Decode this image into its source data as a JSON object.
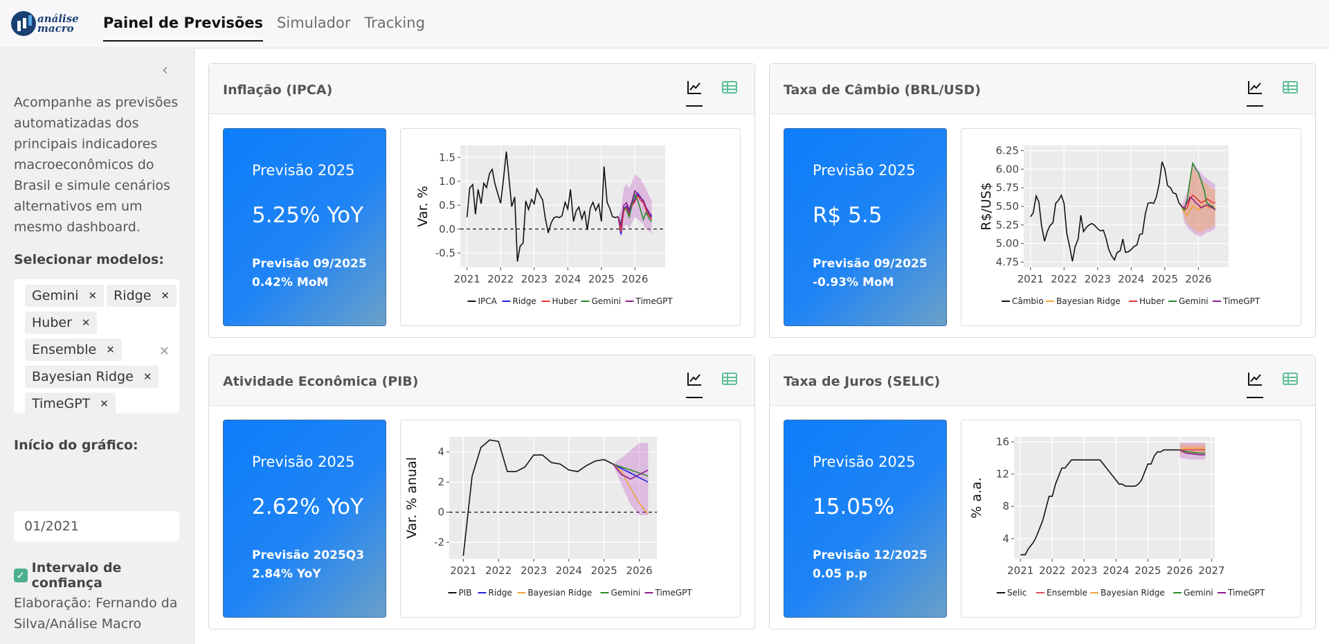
{
  "nav": {
    "items": [
      "Painel de Previsões",
      "Simulador",
      "Tracking"
    ]
  },
  "sidebar": {
    "description": "Acompanhe as previsões automatizadas dos principais indicadores macroeconômicos do Brasil e simule cenários alternativos em um mesmo dashboard.",
    "models_label": "Selecionar modelos:",
    "selected_models": [
      "Gemini",
      "Ridge",
      "Huber",
      "Ensemble",
      "Bayesian Ridge",
      "TimeGPT"
    ],
    "start_label": "Início do gráfico:",
    "start_value": "01/2021",
    "confidence_label": "Intervalo de confiança",
    "confidence_checked": true,
    "credit": "Elaboração: Fernando da Silva/Análise Macro"
  },
  "cards": [
    {
      "title": "Inflação (IPCA)",
      "box_title": "Previsão 2025",
      "box_value": "5.25% YoY",
      "box_sub1": "Previsão 09/2025",
      "box_sub2": "0.42% MoM"
    },
    {
      "title": "Taxa de Câmbio (BRL/USD)",
      "box_title": "Previsão 2025",
      "box_value": "R$ 5.5",
      "box_sub1": "Previsão 09/2025",
      "box_sub2": "-0.93% MoM"
    },
    {
      "title": "Atividade Econômica (PIB)",
      "box_title": "Previsão 2025",
      "box_value": "2.62% YoY",
      "box_sub1": "Previsão 2025Q3",
      "box_sub2": "2.84% YoY"
    },
    {
      "title": "Taxa de Juros (SELIC)",
      "box_title": "Previsão 2025",
      "box_value": "15.05%",
      "box_sub1": "Previsão 12/2025",
      "box_sub2": "0.05 p.p"
    }
  ],
  "colors": {
    "Ridge": "#1f1fe0",
    "Huber": "#e8322e",
    "Gemini": "#2a8a2a",
    "TimeGPT": "#8a1c8a",
    "Bayesian Ridge": "#f2a33a",
    "Ensemble": "#d94a5a",
    "history": "#111111",
    "band": "#c060c8"
  },
  "chart_data": [
    {
      "type": "line",
      "ylabel": "Var. %",
      "ylim": [
        -0.8,
        1.75
      ],
      "yticks": [
        -0.5,
        0.0,
        0.5,
        1.0,
        1.5
      ],
      "ytick_labels": [
        "-0.5",
        "0.0",
        "0.5",
        "1.0",
        "1.5"
      ],
      "xlim": [
        2020.8,
        2026.9
      ],
      "xticks": [
        2021,
        2022,
        2023,
        2024,
        2025,
        2026
      ],
      "hline": 0,
      "legend": [
        "IPCA",
        "Ridge",
        "Huber",
        "Gemini",
        "TimeGPT"
      ],
      "history": {
        "name": "IPCA",
        "x": [
          2021.0,
          2021.08,
          2021.17,
          2021.25,
          2021.33,
          2021.42,
          2021.5,
          2021.58,
          2021.67,
          2021.75,
          2021.83,
          2021.92,
          2022.0,
          2022.08,
          2022.17,
          2022.25,
          2022.33,
          2022.42,
          2022.5,
          2022.58,
          2022.67,
          2022.75,
          2022.83,
          2022.92,
          2023.0,
          2023.08,
          2023.17,
          2023.25,
          2023.33,
          2023.42,
          2023.5,
          2023.58,
          2023.67,
          2023.75,
          2023.83,
          2023.92,
          2024.0,
          2024.08,
          2024.17,
          2024.25,
          2024.33,
          2024.42,
          2024.5,
          2024.58,
          2024.67,
          2024.75,
          2024.83,
          2024.92,
          2025.0,
          2025.08,
          2025.17,
          2025.25,
          2025.33,
          2025.42,
          2025.5
        ],
        "y": [
          0.25,
          0.86,
          0.93,
          0.31,
          0.83,
          0.53,
          0.96,
          0.87,
          1.16,
          1.25,
          0.95,
          0.73,
          0.54,
          1.01,
          1.62,
          1.06,
          0.47,
          0.67,
          -0.68,
          -0.36,
          -0.29,
          0.59,
          0.41,
          0.62,
          0.53,
          0.84,
          0.71,
          0.61,
          0.23,
          -0.08,
          0.12,
          0.23,
          0.26,
          0.24,
          0.28,
          0.56,
          0.42,
          0.83,
          0.16,
          0.38,
          0.46,
          0.21,
          0.38,
          -0.02,
          0.44,
          0.56,
          0.39,
          0.52,
          0.16,
          1.31,
          0.56,
          0.43,
          0.26,
          0.24,
          0.26
        ]
      },
      "forecast_x": [
        2025.5,
        2025.58,
        2025.67,
        2025.75,
        2025.83,
        2025.92,
        2026.0,
        2026.08,
        2026.17,
        2026.25,
        2026.33,
        2026.42,
        2026.5
      ],
      "series": [
        {
          "name": "Ridge",
          "y": [
            0.26,
            -0.11,
            0.42,
            0.48,
            0.35,
            0.52,
            0.62,
            0.75,
            0.66,
            0.58,
            0.42,
            0.3,
            0.25
          ]
        },
        {
          "name": "Huber",
          "y": [
            0.26,
            -0.05,
            0.38,
            0.45,
            0.3,
            0.5,
            0.58,
            0.7,
            0.6,
            0.55,
            0.4,
            0.28,
            0.2
          ]
        },
        {
          "name": "Gemini",
          "y": [
            0.26,
            0.1,
            0.45,
            0.4,
            0.25,
            0.55,
            0.72,
            0.6,
            0.4,
            0.2,
            0.35,
            0.22,
            0.15
          ]
        },
        {
          "name": "TimeGPT",
          "y": [
            0.26,
            0.05,
            0.5,
            0.55,
            0.4,
            0.6,
            0.8,
            0.72,
            0.65,
            0.6,
            0.45,
            0.35,
            0.28
          ]
        }
      ],
      "band": {
        "lower": [
          0.26,
          -0.2,
          0.05,
          0.1,
          0.0,
          0.15,
          0.25,
          0.2,
          0.15,
          0.1,
          0.0,
          -0.05,
          -0.1
        ],
        "upper": [
          0.26,
          0.4,
          0.85,
          0.95,
          0.85,
          1.0,
          1.15,
          1.1,
          1.05,
          0.95,
          0.85,
          0.7,
          0.6
        ]
      }
    },
    {
      "type": "line",
      "ylabel": "R$/US$",
      "ylim": [
        4.68,
        6.32
      ],
      "yticks": [
        4.75,
        5.0,
        5.25,
        5.5,
        5.75,
        6.0,
        6.25
      ],
      "ytick_labels": [
        "4.75",
        "5.00",
        "5.25",
        "5.50",
        "5.75",
        "6.00",
        "6.25"
      ],
      "xlim": [
        2020.8,
        2026.9
      ],
      "xticks": [
        2021,
        2022,
        2023,
        2024,
        2025,
        2026
      ],
      "legend": [
        "Câmbio",
        "Bayesian Ridge",
        "Huber",
        "Gemini",
        "TimeGPT"
      ],
      "history": {
        "name": "Câmbio",
        "x": [
          2021.0,
          2021.08,
          2021.17,
          2021.25,
          2021.33,
          2021.42,
          2021.5,
          2021.58,
          2021.67,
          2021.75,
          2021.83,
          2021.92,
          2022.0,
          2022.08,
          2022.17,
          2022.25,
          2022.33,
          2022.42,
          2022.5,
          2022.58,
          2022.67,
          2022.75,
          2022.83,
          2022.92,
          2023.0,
          2023.08,
          2023.17,
          2023.25,
          2023.33,
          2023.42,
          2023.5,
          2023.58,
          2023.67,
          2023.75,
          2023.83,
          2023.92,
          2024.0,
          2024.08,
          2024.17,
          2024.25,
          2024.33,
          2024.42,
          2024.5,
          2024.58,
          2024.67,
          2024.75,
          2024.83,
          2024.92,
          2025.0,
          2025.08,
          2025.17,
          2025.25,
          2025.33,
          2025.42,
          2025.5
        ],
        "y": [
          5.36,
          5.41,
          5.64,
          5.56,
          5.24,
          5.03,
          5.16,
          5.24,
          5.28,
          5.54,
          5.58,
          5.65,
          5.54,
          5.14,
          4.95,
          4.76,
          4.96,
          5.06,
          5.38,
          5.16,
          5.22,
          5.25,
          5.27,
          5.24,
          5.2,
          5.17,
          5.18,
          5.07,
          4.92,
          4.83,
          4.78,
          4.88,
          4.9,
          5.06,
          4.88,
          4.89,
          4.92,
          4.96,
          4.98,
          5.12,
          5.13,
          5.4,
          5.54,
          5.55,
          5.54,
          5.63,
          5.8,
          6.1,
          6.0,
          5.78,
          5.75,
          5.68,
          5.67,
          5.55,
          5.5
        ]
      },
      "forecast_x": [
        2025.5,
        2025.58,
        2025.67,
        2025.75,
        2025.83,
        2025.92,
        2026.0,
        2026.08,
        2026.17,
        2026.25,
        2026.33,
        2026.42,
        2026.5
      ],
      "series": [
        {
          "name": "Bayesian Ridge",
          "y": [
            5.5,
            5.42,
            5.38,
            5.45,
            5.5,
            5.48,
            5.45,
            5.5,
            5.52,
            5.5,
            5.48,
            5.5,
            5.47
          ]
        },
        {
          "name": "Huber",
          "y": [
            5.5,
            5.45,
            5.48,
            5.6,
            5.65,
            5.62,
            5.58,
            5.55,
            5.57,
            5.6,
            5.58,
            5.55,
            5.55
          ]
        },
        {
          "name": "Gemini",
          "y": [
            5.5,
            5.45,
            5.6,
            5.85,
            6.08,
            6.0,
            5.95,
            5.85,
            5.72,
            5.55,
            5.52,
            5.5,
            5.45
          ]
        },
        {
          "name": "TimeGPT",
          "y": [
            5.5,
            5.48,
            5.55,
            5.62,
            5.6,
            5.55,
            5.52,
            5.48,
            5.5,
            5.52,
            5.5,
            5.48,
            5.46
          ]
        }
      ],
      "band": {
        "lower": [
          5.5,
          5.28,
          5.22,
          5.18,
          5.15,
          5.12,
          5.1,
          5.1,
          5.12,
          5.15,
          5.15,
          5.18,
          5.2
        ],
        "upper": [
          5.5,
          5.6,
          5.7,
          5.9,
          6.1,
          6.05,
          6.0,
          5.95,
          5.9,
          5.88,
          5.85,
          5.82,
          5.8
        ]
      }
    },
    {
      "type": "line",
      "ylabel": "Var. % anual",
      "ylim": [
        -3.1,
        5.0
      ],
      "yticks": [
        -2,
        0,
        2,
        4
      ],
      "ytick_labels": [
        "-2",
        "0",
        "2",
        "4"
      ],
      "xlim": [
        2020.6,
        2026.5
      ],
      "xticks": [
        2021,
        2022,
        2023,
        2024,
        2025,
        2026
      ],
      "hline": 0,
      "legend": [
        "PIB",
        "Ridge",
        "Bayesian Ridge",
        "Gemini",
        "TimeGPT"
      ],
      "history": {
        "name": "PIB",
        "x": [
          2021.0,
          2021.25,
          2021.5,
          2021.75,
          2022.0,
          2022.25,
          2022.5,
          2022.75,
          2023.0,
          2023.25,
          2023.5,
          2023.75,
          2024.0,
          2024.25,
          2024.5,
          2024.75,
          2025.0,
          2025.25
        ],
        "y": [
          -2.9,
          2.4,
          4.3,
          4.8,
          4.7,
          2.7,
          2.7,
          3.0,
          3.8,
          3.8,
          3.3,
          3.2,
          2.8,
          2.7,
          3.1,
          3.4,
          3.5,
          3.2
        ]
      },
      "forecast_x": [
        2025.25,
        2025.5,
        2025.75,
        2026.0,
        2026.25
      ],
      "series": [
        {
          "name": "Ridge",
          "y": [
            3.2,
            2.9,
            2.6,
            2.3,
            2.0
          ]
        },
        {
          "name": "Bayesian Ridge",
          "y": [
            3.2,
            2.7,
            1.6,
            0.6,
            -0.1
          ]
        },
        {
          "name": "Gemini",
          "y": [
            3.2,
            3.0,
            2.8,
            2.6,
            2.4
          ]
        },
        {
          "name": "TimeGPT",
          "y": [
            3.2,
            2.5,
            2.2,
            2.5,
            2.8
          ]
        }
      ],
      "band": {
        "lower": [
          3.2,
          1.8,
          0.5,
          -0.2,
          -0.2
        ],
        "upper": [
          3.2,
          3.6,
          4.1,
          4.6,
          4.6
        ]
      }
    },
    {
      "type": "line",
      "ylabel": "% a.a.",
      "ylim": [
        1.5,
        16.6
      ],
      "yticks": [
        4,
        8,
        12,
        16
      ],
      "ytick_labels": [
        "4",
        "8",
        "12",
        "16"
      ],
      "xlim": [
        2020.8,
        2027.1
      ],
      "xticks": [
        2021,
        2022,
        2023,
        2024,
        2025,
        2026,
        2027
      ],
      "legend": [
        "Selic",
        "Ensemble",
        "Bayesian Ridge",
        "Gemini",
        "TimeGPT"
      ],
      "history": {
        "name": "Selic",
        "x": [
          2021.0,
          2021.15,
          2021.25,
          2021.4,
          2021.5,
          2021.6,
          2021.7,
          2021.8,
          2021.9,
          2022.0,
          2022.1,
          2022.2,
          2022.3,
          2022.4,
          2022.5,
          2022.6,
          2022.7,
          2023.0,
          2023.5,
          2023.6,
          2023.7,
          2023.8,
          2023.9,
          2024.0,
          2024.1,
          2024.2,
          2024.3,
          2024.4,
          2024.5,
          2024.6,
          2024.7,
          2024.8,
          2024.9,
          2025.0,
          2025.1,
          2025.2,
          2025.3,
          2025.4,
          2025.5,
          2025.6,
          2025.8,
          2026.0
        ],
        "y": [
          2.0,
          2.0,
          2.75,
          3.5,
          4.25,
          5.25,
          6.25,
          7.75,
          9.25,
          9.25,
          10.75,
          11.75,
          12.75,
          12.75,
          13.25,
          13.75,
          13.75,
          13.75,
          13.75,
          13.25,
          12.75,
          12.25,
          11.75,
          11.25,
          10.75,
          10.75,
          10.5,
          10.5,
          10.5,
          10.5,
          10.75,
          11.25,
          12.25,
          13.25,
          13.25,
          14.25,
          14.75,
          14.75,
          15.0,
          15.0,
          15.0,
          15.0
        ]
      },
      "forecast_x": [
        2026.0,
        2026.2,
        2026.4,
        2026.6,
        2026.8
      ],
      "series": [
        {
          "name": "Ensemble",
          "y": [
            15.0,
            15.0,
            15.0,
            15.0,
            15.0
          ]
        },
        {
          "name": "Bayesian Ridge",
          "y": [
            15.0,
            15.2,
            15.2,
            15.2,
            15.2
          ]
        },
        {
          "name": "Gemini",
          "y": [
            15.0,
            14.8,
            14.7,
            14.6,
            14.6
          ]
        },
        {
          "name": "TimeGPT",
          "y": [
            15.0,
            14.6,
            14.5,
            14.4,
            14.4
          ]
        }
      ],
      "band": {
        "lower": [
          14.0,
          13.9,
          13.8,
          13.8,
          13.8
        ],
        "upper": [
          15.9,
          15.9,
          15.9,
          15.9,
          15.9
        ]
      }
    }
  ]
}
